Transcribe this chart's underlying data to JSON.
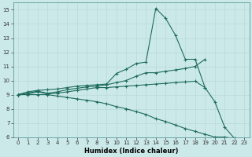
{
  "xlabel": "Humidex (Indice chaleur)",
  "background_color": "#cce9e9",
  "grid_color": "#b8d8d8",
  "line_color": "#1e6b5e",
  "xlim": [
    -0.5,
    23.5
  ],
  "ylim": [
    6,
    15.5
  ],
  "yticks": [
    6,
    7,
    8,
    9,
    10,
    11,
    12,
    13,
    14,
    15
  ],
  "xticks": [
    0,
    1,
    2,
    3,
    4,
    5,
    6,
    7,
    8,
    9,
    10,
    11,
    12,
    13,
    14,
    15,
    16,
    17,
    18,
    19,
    20,
    21,
    22,
    23
  ],
  "series": [
    {
      "x": [
        0,
        1,
        2,
        3,
        4,
        5,
        6,
        7,
        8,
        9,
        10,
        11,
        12,
        13,
        14,
        15,
        16,
        17,
        18,
        19,
        20,
        21,
        22
      ],
      "y": [
        9.0,
        9.2,
        9.3,
        9.35,
        9.4,
        9.5,
        9.6,
        9.65,
        9.7,
        9.75,
        10.5,
        10.8,
        11.2,
        11.3,
        15.1,
        14.4,
        13.2,
        11.5,
        11.5,
        9.5,
        8.5,
        6.7,
        5.9
      ]
    },
    {
      "x": [
        0,
        1,
        2,
        3,
        4,
        5,
        6,
        7,
        8,
        9,
        10,
        11,
        12,
        13,
        14,
        15,
        16,
        17,
        18,
        19
      ],
      "y": [
        9.0,
        9.1,
        9.25,
        9.1,
        9.2,
        9.35,
        9.45,
        9.55,
        9.6,
        9.7,
        9.85,
        10.0,
        10.3,
        10.55,
        10.55,
        10.65,
        10.75,
        10.85,
        11.0,
        11.5
      ]
    },
    {
      "x": [
        0,
        1,
        2,
        3,
        4,
        5,
        6,
        7,
        8,
        9,
        10,
        11,
        12,
        13,
        14,
        15,
        16,
        17,
        18,
        19
      ],
      "y": [
        9.0,
        9.05,
        9.2,
        9.05,
        9.1,
        9.2,
        9.3,
        9.4,
        9.5,
        9.5,
        9.55,
        9.6,
        9.65,
        9.7,
        9.75,
        9.8,
        9.85,
        9.9,
        9.95,
        9.5
      ]
    },
    {
      "x": [
        0,
        1,
        2,
        3,
        4,
        5,
        6,
        7,
        8,
        9,
        10,
        11,
        12,
        13,
        14,
        15,
        16,
        17,
        18,
        19,
        20,
        21,
        22
      ],
      "y": [
        9.0,
        9.0,
        9.0,
        9.0,
        8.9,
        8.8,
        8.7,
        8.6,
        8.5,
        8.35,
        8.15,
        8.0,
        7.8,
        7.6,
        7.3,
        7.1,
        6.85,
        6.6,
        6.4,
        6.2,
        6.0,
        6.0,
        5.9
      ]
    }
  ]
}
